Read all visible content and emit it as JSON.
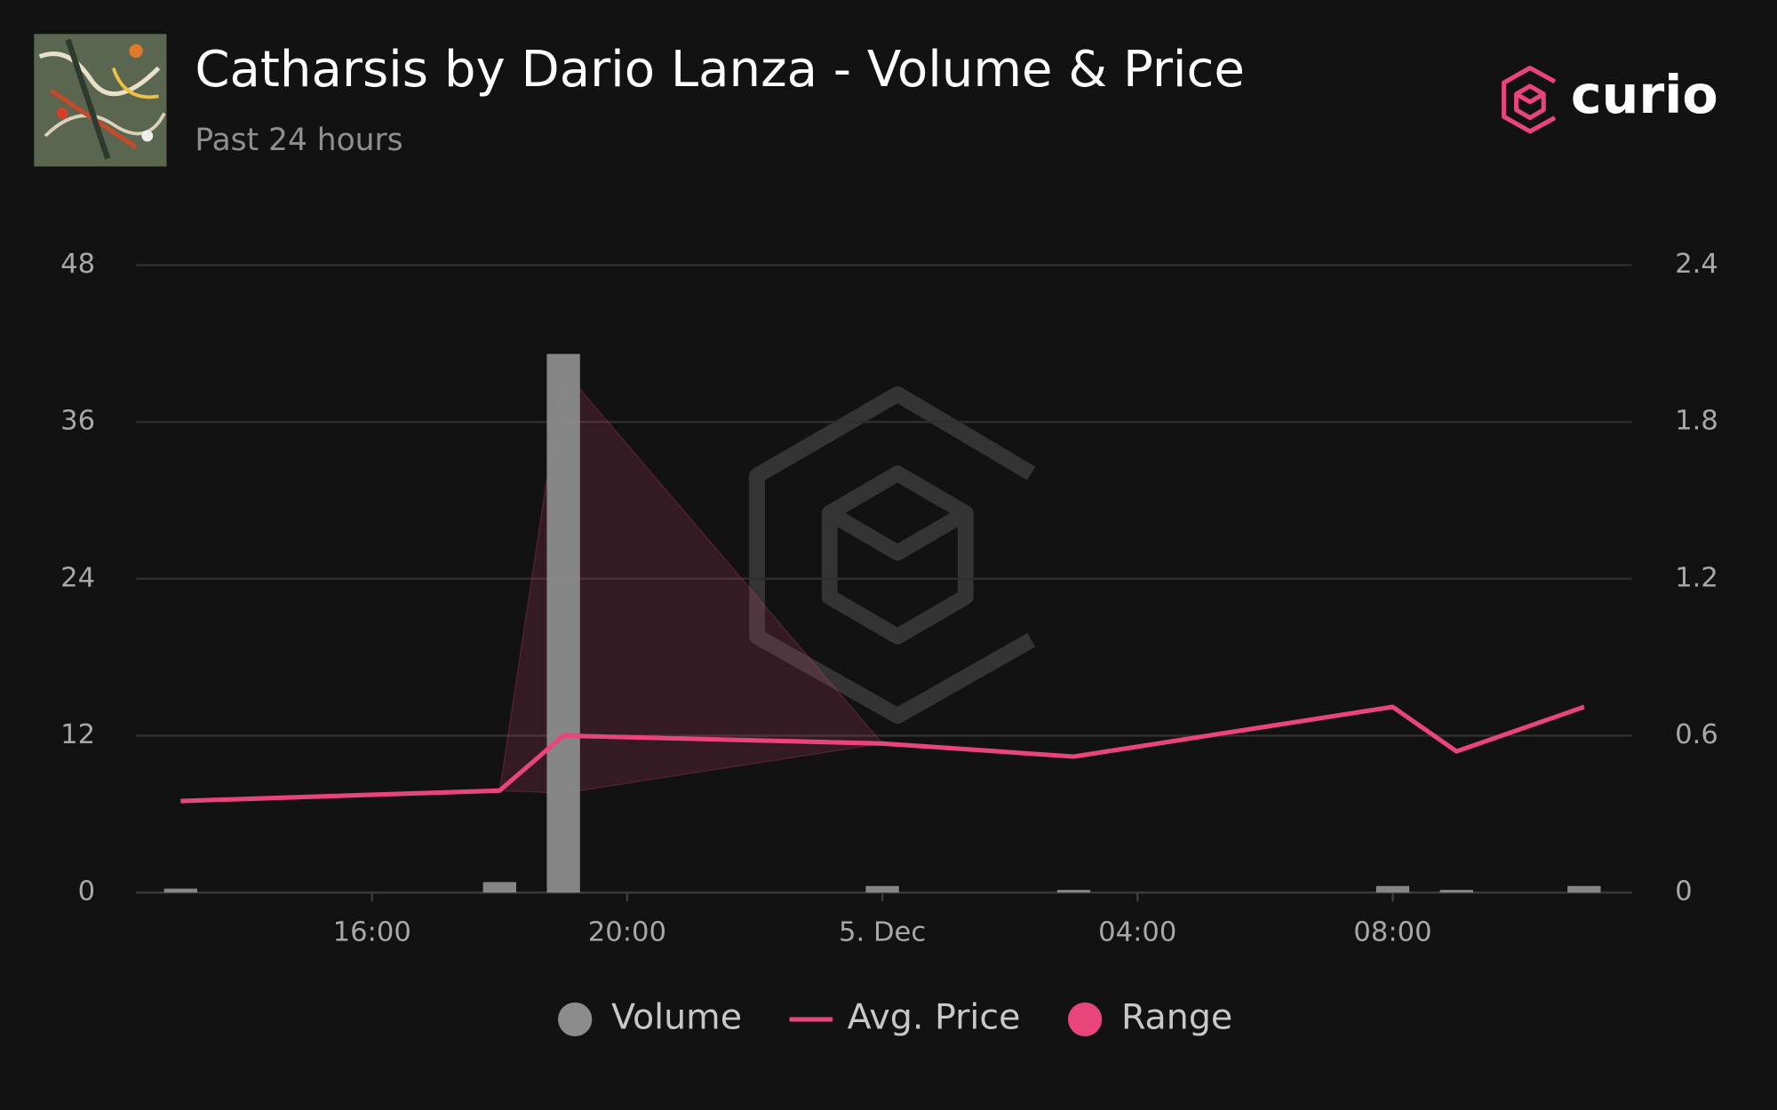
{
  "chart_data": {
    "type": "combo",
    "title": "Catharsis by Dario Lanza - Volume & Price",
    "subtitle": "Past 24 hours",
    "brand": "curio",
    "x": [
      13,
      18,
      19,
      24,
      27,
      32,
      33,
      35
    ],
    "xlim": [
      12.3,
      35.75
    ],
    "xticks": [
      {
        "value": 16,
        "label": "16:00"
      },
      {
        "value": 20,
        "label": "20:00"
      },
      {
        "value": 24,
        "label": "5. Dec"
      },
      {
        "value": 28,
        "label": "04:00"
      },
      {
        "value": 32,
        "label": "08:00"
      }
    ],
    "ylim": [
      0,
      48
    ],
    "yticks": [
      0,
      12,
      24,
      36,
      48
    ],
    "y2lim": [
      0,
      2.4
    ],
    "y2ticks": [
      0,
      0.6,
      1.2,
      1.8,
      2.4
    ],
    "grid": true,
    "legend": "bottom",
    "series": [
      {
        "name": "Volume",
        "type": "bar",
        "color": "#8c8c8c",
        "values": [
          0.3,
          0.8,
          41.2,
          0.5,
          0.2,
          0.5,
          0.2,
          0.5
        ]
      },
      {
        "name": "Avg. Price",
        "type": "line",
        "axis": "y2",
        "color": "#e8457a",
        "values": [
          0.35,
          0.39,
          0.6,
          0.57,
          0.52,
          0.71,
          0.54,
          0.71
        ]
      },
      {
        "name": "Range",
        "type": "arearange",
        "axis": "y2",
        "color": "#e8457a",
        "low": [
          null,
          0.39,
          0.38,
          0.57,
          null,
          null,
          null,
          null
        ],
        "high": [
          null,
          0.39,
          2.0,
          0.57,
          null,
          null,
          null,
          null
        ]
      }
    ]
  }
}
